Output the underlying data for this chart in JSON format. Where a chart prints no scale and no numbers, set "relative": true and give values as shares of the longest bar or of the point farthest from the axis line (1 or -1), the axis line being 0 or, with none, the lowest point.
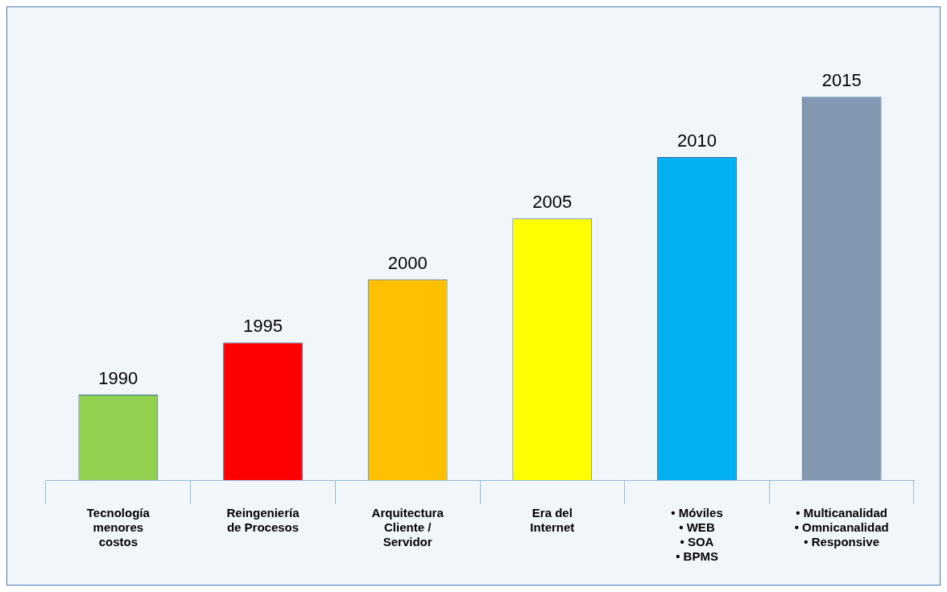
{
  "chart_data": {
    "type": "bar",
    "relative": true,
    "categories": [
      "Tecnología\nmenores\ncostos",
      "Reingeniería\nde Procesos",
      "Arquitectura\nCliente /\nServidor",
      "Era del\nInternet",
      "• Móviles\n• WEB\n• SOA\n• BPMS",
      "• Multicanalidad\n• Omnicanalidad\n• Responsive"
    ],
    "values": [
      0.223,
      0.359,
      0.524,
      0.683,
      0.843,
      1
    ],
    "colors": [
      "#92d050",
      "#ff0000",
      "#ffc000",
      "#ffff00",
      "#00b0f0",
      "#8497b0"
    ],
    "annotations": [
      {
        "text": "1990",
        "x": "Tecnología\nmenores\ncostos",
        "y": 0.223
      },
      {
        "text": "1995",
        "x": "Reingeniería\nde Procesos",
        "y": 0.359
      },
      {
        "text": "2000",
        "x": "Arquitectura\nCliente /\nServidor",
        "y": 0.524
      },
      {
        "text": "2005",
        "x": "Era del\nInternet",
        "y": 0.683
      },
      {
        "text": "2010",
        "x": "• Móviles\n• WEB\n• SOA\n• BPMS",
        "y": 0.843
      },
      {
        "text": "2015",
        "x": "• Multicanalidad\n• Omnicanalidad\n• Responsive",
        "y": 1
      }
    ]
  }
}
